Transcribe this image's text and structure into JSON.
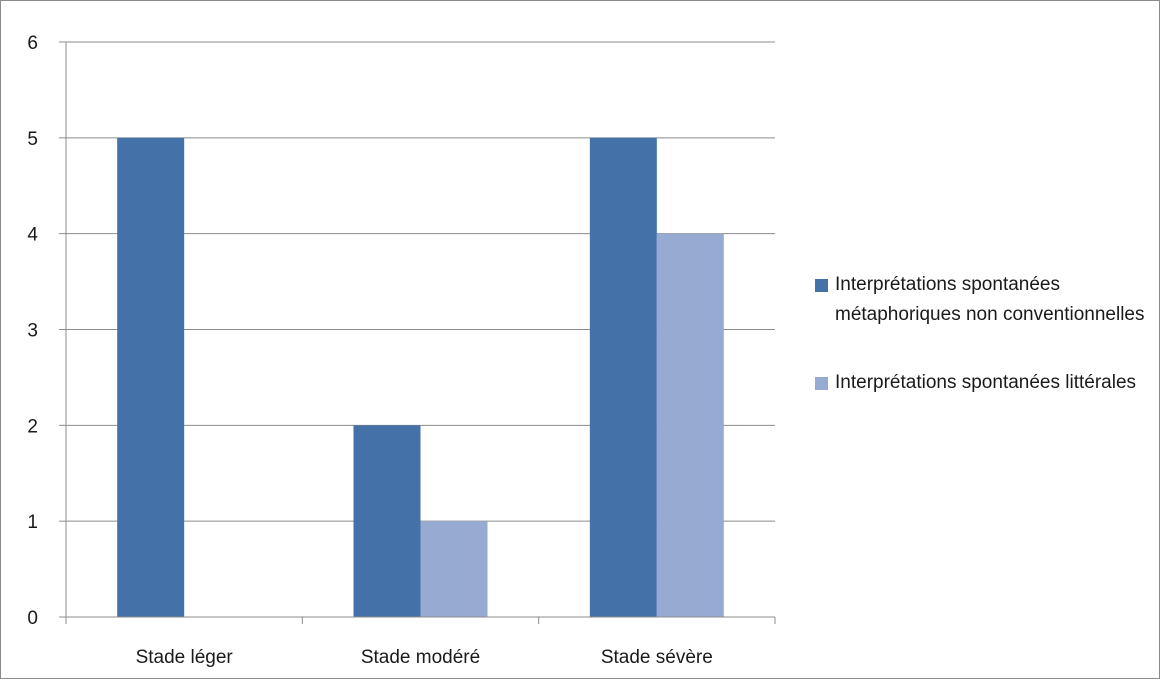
{
  "chart_data": {
    "type": "bar",
    "categories": [
      "Stade léger",
      "Stade modéré",
      "Stade sévère"
    ],
    "series": [
      {
        "name": "Interprétations spontanées métaphoriques non conventionnelles",
        "color": "#4472a8",
        "values": [
          5,
          2,
          5
        ]
      },
      {
        "name": "Interprétations spontanées littérales",
        "color": "#97aad2",
        "values": [
          0,
          1,
          4
        ]
      }
    ],
    "ylim": [
      0,
      6
    ],
    "yticks": [
      0,
      1,
      2,
      3,
      4,
      5,
      6
    ],
    "grid": true,
    "legend": "right"
  }
}
